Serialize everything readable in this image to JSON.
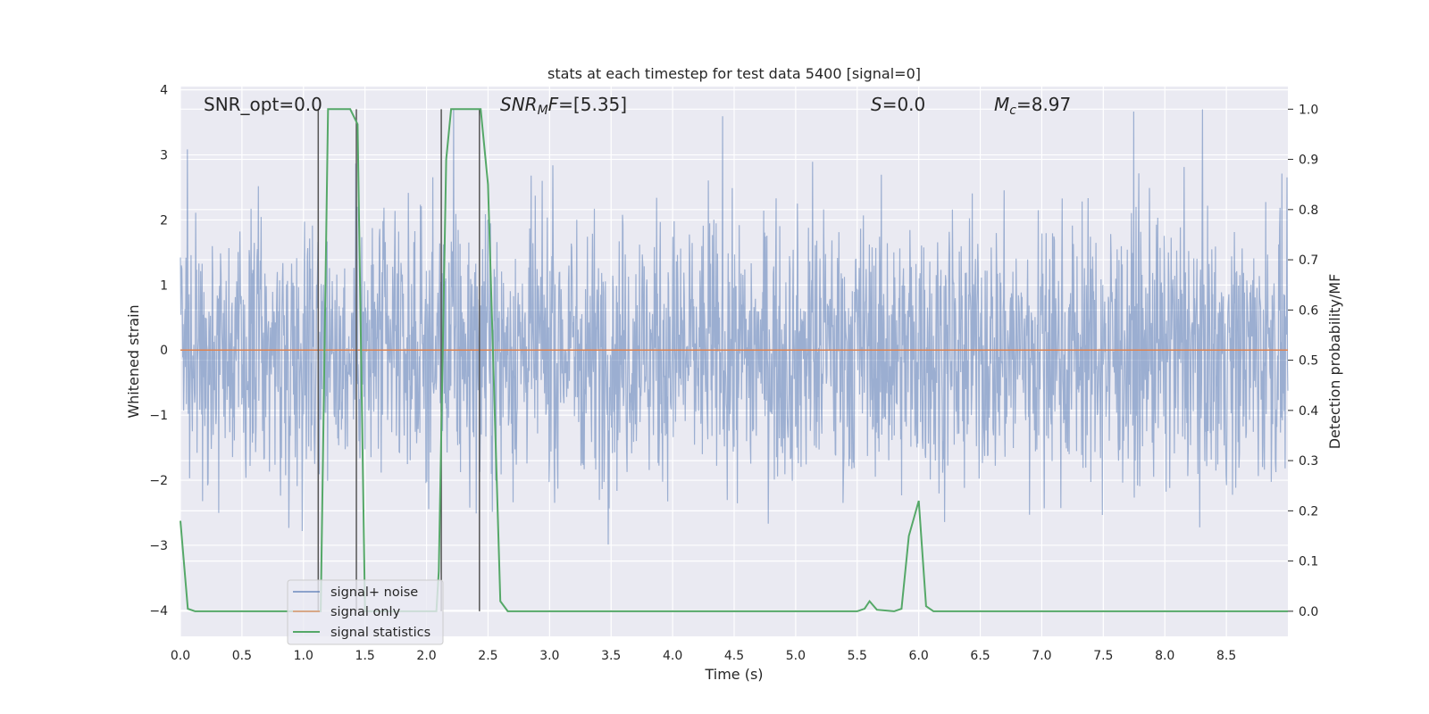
{
  "chart_data": {
    "type": "line",
    "title": "stats at each timestep for test data 5400 [signal=0]",
    "xlabel": "Time (s)",
    "ylabel": "Whitened strain",
    "y2label": "Detection probability/MF",
    "xlim": [
      0.0,
      9.0
    ],
    "ylim": [
      -4.4,
      4.05
    ],
    "y2lim": [
      -0.05,
      1.045
    ],
    "xticks": [
      "0.0",
      "0.5",
      "1.0",
      "1.5",
      "2.0",
      "2.5",
      "3.0",
      "3.5",
      "4.0",
      "4.5",
      "5.0",
      "5.5",
      "6.0",
      "6.5",
      "7.0",
      "7.5",
      "8.0",
      "8.5"
    ],
    "yticks": [
      "4",
      "3",
      "2",
      "1",
      "0",
      "−1",
      "−2",
      "−3",
      "−4"
    ],
    "y2ticks": [
      "1.0",
      "0.9",
      "0.8",
      "0.7",
      "0.6",
      "0.5",
      "0.4",
      "0.3",
      "0.2",
      "0.1",
      "0.0"
    ],
    "grid": true,
    "legend_position": "lower-left",
    "series": [
      {
        "name": "signal+ noise",
        "color": "#4c72b0",
        "note_axis": "left",
        "values_description": "noise band approx ±2 with spikes to ±3.7"
      },
      {
        "name": "signal only",
        "color": "#dd8452",
        "axis": "left",
        "x": [
          0.0,
          9.0
        ],
        "y": [
          0.0,
          0.0
        ]
      },
      {
        "name": "signal statistics",
        "color": "#55a868",
        "axis": "right",
        "x": [
          0.0,
          0.06,
          0.12,
          1.08,
          1.14,
          1.2,
          1.28,
          1.38,
          1.44,
          1.5,
          1.52,
          2.08,
          2.1,
          2.16,
          2.2,
          2.26,
          2.34,
          2.44,
          2.5,
          2.6,
          2.66,
          5.5,
          5.56,
          5.6,
          5.66,
          5.8,
          5.86,
          5.92,
          6.0,
          6.06,
          6.12,
          9.0
        ],
        "y": [
          0.18,
          0.005,
          0.0,
          0.0,
          0.0,
          1.0,
          1.0,
          1.0,
          0.97,
          0.0,
          0.0,
          0.0,
          0.08,
          0.9,
          1.0,
          1.0,
          1.0,
          1.0,
          0.85,
          0.02,
          0.0,
          0.0,
          0.005,
          0.02,
          0.003,
          0.0,
          0.005,
          0.15,
          0.22,
          0.01,
          0.0,
          0.0
        ]
      }
    ],
    "vertical_lines_x": [
      1.12,
      1.43,
      2.12,
      2.43
    ],
    "annotations": {
      "snr_opt": "SNR_opt=0.0",
      "snr_mf_sym": "SNR",
      "snr_mf_sub": "M",
      "snr_mf_tail": "F",
      "snr_mf_val": "=[5.35]",
      "s_sym": "S",
      "s_val": "=0.0",
      "mc_sym": "M",
      "mc_sub": "c",
      "mc_val": "=8.97"
    },
    "colors": {
      "background": "#eaeaf2",
      "grid": "#ffffff",
      "vline": "#555555"
    }
  }
}
